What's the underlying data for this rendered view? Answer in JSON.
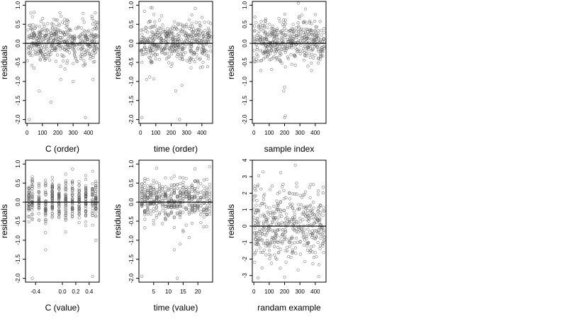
{
  "chart_data": [
    {
      "type": "scatter",
      "xlabel": "C (order)",
      "ylabel": "residuals",
      "xlim": [
        -10,
        470
      ],
      "ylim": [
        -2.1,
        1.1
      ],
      "xticks": [
        0,
        100,
        200,
        300,
        400
      ],
      "xticklabels": [
        "0",
        "100",
        "200",
        "300",
        "400"
      ],
      "yticks": [
        -2.0,
        -1.5,
        -1.0,
        -0.5,
        0.0,
        0.5,
        1.0
      ],
      "yticklabels": [
        "-2.0",
        "-1.5",
        "-1.0",
        "-0.5",
        "0.0",
        "0.5",
        "1.0"
      ],
      "reference_line_y": 0,
      "grid": false,
      "n_points": 460,
      "outliers": [
        [
          15,
          -2.0
        ],
        [
          80,
          -1.25
        ],
        [
          155,
          -1.55
        ],
        [
          380,
          -1.95
        ],
        [
          220,
          -0.95
        ],
        [
          300,
          -1.0
        ],
        [
          430,
          -0.95
        ]
      ],
      "note_points": "dense cloud of small open circles centered on zero, most between -0.6 and 0.6"
    },
    {
      "type": "scatter",
      "xlabel": "time (order)",
      "ylabel": "residuals",
      "xlim": [
        -10,
        470
      ],
      "ylim": [
        -2.1,
        1.1
      ],
      "xticks": [
        0,
        100,
        200,
        300,
        400
      ],
      "xticklabels": [
        "0",
        "100",
        "200",
        "300",
        "400"
      ],
      "yticks": [
        -2.0,
        -1.5,
        -1.0,
        -0.5,
        0.0,
        0.5,
        1.0
      ],
      "yticklabels": [
        "-2.0",
        "-1.5",
        "-1.0",
        "-0.5",
        "0.0",
        "0.5",
        "1.0"
      ],
      "reference_line_y": 0,
      "grid": false,
      "n_points": 460,
      "outliers": [
        [
          10,
          -1.95
        ],
        [
          255,
          -2.0
        ],
        [
          230,
          -1.25
        ],
        [
          270,
          -1.1
        ],
        [
          40,
          -0.95
        ]
      ],
      "note_points": "dense cloud of small open circles centered on zero"
    },
    {
      "type": "scatter",
      "xlabel": "sample index",
      "ylabel": "residuals",
      "xlim": [
        -10,
        470
      ],
      "ylim": [
        -2.1,
        1.1
      ],
      "xticks": [
        0,
        100,
        200,
        300,
        400
      ],
      "xticklabels": [
        "0",
        "100",
        "200",
        "300",
        "400"
      ],
      "yticks": [
        -2.0,
        -1.5,
        -1.0,
        -0.5,
        0.0,
        0.5,
        1.0
      ],
      "yticklabels": [
        "-2.0",
        "-1.5",
        "-1.0",
        "-0.5",
        "0.0",
        "0.5",
        "1.0"
      ],
      "reference_line_y": 0,
      "grid": false,
      "n_points": 460,
      "outliers": [
        [
          200,
          -1.95
        ],
        [
          205,
          -1.9
        ],
        [
          195,
          -1.25
        ],
        [
          200,
          -1.15
        ],
        [
          290,
          1.05
        ]
      ],
      "note_points": "dense cloud of small open circles centered on zero"
    },
    {
      "type": "scatter",
      "xlabel": "C (value)",
      "ylabel": "residuals",
      "xlim": [
        -0.55,
        0.55
      ],
      "ylim": [
        -2.1,
        1.1
      ],
      "xticks": [
        -0.4,
        0.0,
        0.2,
        0.4
      ],
      "xticklabels": [
        "-0.4",
        "0.0",
        "0.2",
        "0.4"
      ],
      "yticks": [
        -2.0,
        -1.5,
        -1.0,
        -0.5,
        0.0,
        0.5,
        1.0
      ],
      "yticklabels": [
        "-2.0",
        "-1.5",
        "-1.0",
        "-0.5",
        "0.0",
        "0.5",
        "1.0"
      ],
      "reference_line_y": 0,
      "grid": false,
      "n_points": 460,
      "x_levels": [
        -0.5,
        -0.45,
        -0.35,
        -0.25,
        -0.15,
        -0.05,
        0.05,
        0.15,
        0.25,
        0.35,
        0.45,
        0.5
      ],
      "outliers": [
        [
          -0.45,
          -2.0
        ],
        [
          -0.25,
          -1.25
        ],
        [
          0.45,
          -1.95
        ],
        [
          0.5,
          -1.0
        ]
      ],
      "note_points": "points stacked in vertical columns at discrete C values"
    },
    {
      "type": "scatter",
      "xlabel": "time (value)",
      "ylabel": "residuals",
      "xlim": [
        0,
        25
      ],
      "ylim": [
        -2.1,
        1.1
      ],
      "xticks": [
        5,
        10,
        15,
        20
      ],
      "xticklabels": [
        "5",
        "10",
        "15",
        "20"
      ],
      "yticks": [
        -2.0,
        -1.5,
        -1.0,
        -0.5,
        0.0,
        0.5,
        1.0
      ],
      "yticklabels": [
        "-2.0",
        "-1.5",
        "-1.0",
        "-0.5",
        "0.0",
        "0.5",
        "1.0"
      ],
      "reference_line_y": 0,
      "grid": false,
      "n_points": 460,
      "x_levels": [
        1,
        2,
        3,
        4,
        5,
        6,
        7,
        8,
        9,
        10,
        11,
        12,
        13,
        14,
        15,
        16,
        17,
        18,
        19,
        20,
        21,
        22,
        23,
        24
      ],
      "outliers": [
        [
          1,
          -1.95
        ],
        [
          13,
          -2.0
        ],
        [
          12,
          -1.25
        ],
        [
          14,
          -1.1
        ]
      ],
      "note_points": "points stacked in vertical columns at integer time values"
    },
    {
      "type": "scatter",
      "xlabel": "randam example",
      "ylabel": "residuals",
      "xlim": [
        -10,
        470
      ],
      "ylim": [
        -3.4,
        4.0
      ],
      "xticks": [
        0,
        100,
        200,
        300,
        400
      ],
      "xticklabels": [
        "0",
        "100",
        "200",
        "300",
        "400"
      ],
      "yticks": [
        -3,
        -2,
        -1,
        0,
        1,
        2,
        3,
        4
      ],
      "yticklabels": [
        "-3",
        "-2",
        "-1",
        "0",
        "1",
        "2",
        "3",
        "4"
      ],
      "reference_line_y": 0,
      "grid": false,
      "n_points": 460,
      "outliers": [
        [
          270,
          3.7
        ],
        [
          60,
          3.3
        ],
        [
          200,
          -3.1
        ]
      ],
      "note_points": "uniform random normal cloud between about -2.5 and 2.5"
    }
  ]
}
